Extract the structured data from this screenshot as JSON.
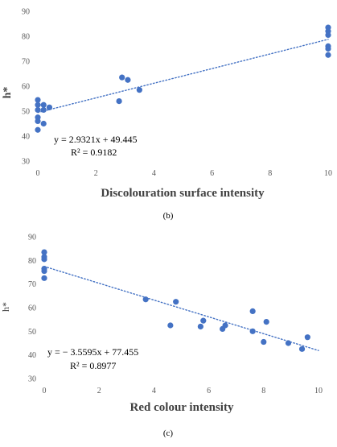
{
  "chart_data": [
    {
      "type": "scatter",
      "panel_label": "(b)",
      "xlabel": "Discolouration   surface intensity",
      "ylabel": "h*",
      "xlim": [
        0,
        10
      ],
      "ylim": [
        30,
        90
      ],
      "xticks": [
        "0",
        "2",
        "4",
        "6",
        "8",
        "10"
      ],
      "yticks": [
        "30",
        "40",
        "50",
        "60",
        "70",
        "80",
        "90"
      ],
      "grid": false,
      "marker_color": "#4472C4",
      "trendline": {
        "slope": 2.9321,
        "intercept": 49.445,
        "style": "dotted",
        "color": "#4472C4"
      },
      "equation": "y = 2.9321x + 49.445",
      "r2": "R² = 0.9182",
      "points": [
        {
          "x": 0,
          "y": 54.5
        },
        {
          "x": 0,
          "y": 52.5
        },
        {
          "x": 0,
          "y": 50.5
        },
        {
          "x": 0,
          "y": 47.5
        },
        {
          "x": 0,
          "y": 46
        },
        {
          "x": 0,
          "y": 42.5
        },
        {
          "x": 0.2,
          "y": 52.5
        },
        {
          "x": 0.2,
          "y": 50.5
        },
        {
          "x": 0.2,
          "y": 45
        },
        {
          "x": 0.4,
          "y": 51.5
        },
        {
          "x": 2.8,
          "y": 54
        },
        {
          "x": 2.9,
          "y": 63.5
        },
        {
          "x": 3.1,
          "y": 62.5
        },
        {
          "x": 3.5,
          "y": 58.5
        },
        {
          "x": 10,
          "y": 83.5
        },
        {
          "x": 10,
          "y": 82
        },
        {
          "x": 10,
          "y": 80.5
        },
        {
          "x": 10,
          "y": 76
        },
        {
          "x": 10,
          "y": 75
        },
        {
          "x": 10,
          "y": 72.5
        }
      ]
    },
    {
      "type": "scatter",
      "panel_label": "(c)",
      "xlabel": "Red colour intensity",
      "ylabel": "h*",
      "xlim": [
        0,
        10
      ],
      "ylim": [
        30,
        90
      ],
      "xticks": [
        "0",
        "2",
        "4",
        "6",
        "8",
        "10"
      ],
      "yticks": [
        "30",
        "40",
        "50",
        "60",
        "70",
        "80",
        "90"
      ],
      "grid": false,
      "marker_color": "#4472C4",
      "trendline": {
        "slope": -3.5595,
        "intercept": 77.455,
        "style": "dotted",
        "color": "#4472C4"
      },
      "equation": "y = − 3.5595x + 77.455",
      "r2": "R² = 0.8977",
      "points": [
        {
          "x": 0,
          "y": 83.5
        },
        {
          "x": 0,
          "y": 81.5
        },
        {
          "x": 0,
          "y": 80.5
        },
        {
          "x": 0,
          "y": 76.5
        },
        {
          "x": 0,
          "y": 75.5
        },
        {
          "x": 0,
          "y": 72.5
        },
        {
          "x": 3.7,
          "y": 63.5
        },
        {
          "x": 4.6,
          "y": 52.5
        },
        {
          "x": 4.8,
          "y": 62.5
        },
        {
          "x": 5.7,
          "y": 52
        },
        {
          "x": 5.8,
          "y": 54.5
        },
        {
          "x": 6.5,
          "y": 51
        },
        {
          "x": 6.6,
          "y": 52.5
        },
        {
          "x": 7.6,
          "y": 58.5
        },
        {
          "x": 7.6,
          "y": 50
        },
        {
          "x": 8.0,
          "y": 45.5
        },
        {
          "x": 8.1,
          "y": 54
        },
        {
          "x": 8.9,
          "y": 45
        },
        {
          "x": 9.4,
          "y": 42.5
        },
        {
          "x": 9.6,
          "y": 47.5
        }
      ]
    }
  ]
}
